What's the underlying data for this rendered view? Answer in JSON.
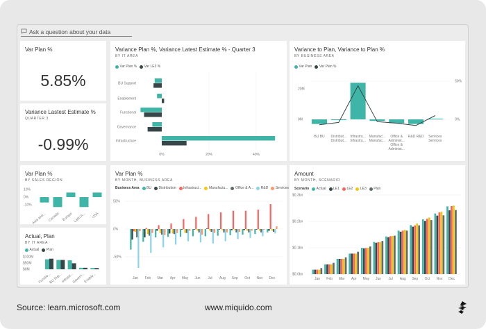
{
  "qa": {
    "placeholder": "Ask a question about your data",
    "icon": "chat-bubble-icon"
  },
  "tiles": {
    "kpi1": {
      "title": "Var Plan %",
      "value": "5.85%"
    },
    "kpi2": {
      "title": "Variance Lastest Estimate %",
      "subtitle": "QUARTER 3",
      "value": "-0.99%"
    }
  },
  "footer": {
    "source": "Source: learn.microsoft.com",
    "site": "www.miquido.com",
    "logo": "miquido-logo"
  },
  "colors": {
    "teal": "#3fb5a7",
    "dark": "#374649",
    "red": "#fd625e",
    "yellow": "#f2c80f",
    "gray": "#5f6b6d",
    "lightblue": "#8ad4eb",
    "orange": "#fe9666"
  },
  "chart_data": [
    {
      "id": "c1",
      "type": "bar",
      "orientation": "horizontal",
      "title": "Variance Plan %, Variance Latest Estimate % - Quarter 3",
      "subtitle": "BY IT AREA",
      "categories": [
        "BU Support",
        "Enablement",
        "Functional",
        "Governance",
        "Infrastructure"
      ],
      "series": [
        {
          "name": "Var Plan %",
          "color": "#3fb5a7",
          "values": [
            -3,
            -2,
            -9,
            -4,
            48
          ]
        },
        {
          "name": "Var LE3 %",
          "color": "#374649",
          "values": [
            -3.5,
            1,
            -7.5,
            -6,
            10.5
          ]
        }
      ],
      "xticks": [
        {
          "v": 0,
          "label": "0%"
        },
        {
          "v": 20,
          "label": "20%"
        },
        {
          "v": 40,
          "label": "40%"
        }
      ],
      "xlim": [
        -10,
        50
      ],
      "grid": true,
      "legend": "top-left"
    },
    {
      "id": "c2",
      "type": "bar+line",
      "title": "Variance to Plan, Variance to Plan %",
      "subtitle": "BY BUSINESS AREA",
      "categories": [
        [
          "BU BU"
        ],
        [
          "Distribut...",
          "Distribut..."
        ],
        [
          "Infrastru...",
          "Infrastru..."
        ],
        [
          "Manufac...",
          "Manufac..."
        ],
        [
          "Office &",
          "Administ...",
          "Office &",
          "Administ..."
        ],
        [
          "R&D R&D"
        ],
        [
          "Services",
          "Services"
        ]
      ],
      "series": [
        {
          "name": "Var Plan",
          "type": "bar",
          "color": "#3fb5a7",
          "values": [
            -3,
            -0.5,
            24,
            -1,
            -2.5,
            -3,
            0.5
          ]
        },
        {
          "name": "Var Plan %",
          "type": "line",
          "color": "#374649",
          "values": [
            -7,
            -4,
            44,
            -3,
            -5,
            -8,
            5
          ]
        }
      ],
      "yticks": [
        {
          "v": 0,
          "label": "0M"
        },
        {
          "v": 20,
          "label": "20M"
        }
      ],
      "y2ticks": [
        {
          "v": 0,
          "label": "0%"
        },
        {
          "v": 50,
          "label": "50%"
        }
      ],
      "legend": "top-left"
    },
    {
      "id": "c3",
      "type": "bar",
      "title": "Var Plan %",
      "subtitle": "BY SALES REGION",
      "categories": [
        "Asia and...",
        "Canada",
        "Europe",
        "Latin A...",
        "USA"
      ],
      "series": [
        {
          "color": "#3fb5a7",
          "values": [
            -7,
            -13,
            6,
            -13,
            6
          ]
        }
      ],
      "yticks": [
        {
          "v": 10,
          "label": "10%"
        },
        {
          "v": 0,
          "label": "0%"
        },
        {
          "v": -10,
          "label": "-10%"
        }
      ]
    },
    {
      "id": "c4",
      "type": "bar",
      "title": "Actual, Plan",
      "subtitle": "BY IT AREA",
      "categories": [
        "Functio...",
        "BU Sup...",
        "Infrastr...",
        "Govern...",
        "Enable..."
      ],
      "series": [
        {
          "name": "Actual",
          "color": "#3fb5a7",
          "values": [
            80,
            75,
            72,
            12,
            10
          ]
        },
        {
          "name": "Plan",
          "color": "#374649",
          "values": [
            85,
            75,
            48,
            12,
            10
          ]
        }
      ],
      "yticks": [
        {
          "v": 100,
          "label": "$100M"
        },
        {
          "v": 50,
          "label": "$50M"
        },
        {
          "v": 0,
          "label": "$0M"
        }
      ],
      "legend": "top-left"
    },
    {
      "id": "c5",
      "type": "bar",
      "title": "Var Plan %",
      "subtitle": "BY MONTH, BUSINESS AREA",
      "legend_title": "Business Area",
      "categories": [
        "Jan",
        "Feb",
        "Mar",
        "Apr",
        "May",
        "Jun",
        "Jul",
        "Aug",
        "Sep",
        "Oct",
        "Nov",
        "Dec"
      ],
      "series": [
        {
          "name": "BU",
          "color": "#3fb5a7",
          "values": [
            -37,
            -23,
            -15,
            -14,
            -14,
            -13,
            -13,
            -12,
            -11,
            -10,
            -9,
            -6
          ]
        },
        {
          "name": "Distribution",
          "color": "#374649",
          "values": [
            -19,
            -15,
            -3,
            -8,
            -1,
            -1,
            1,
            -1,
            -2,
            -2,
            -1,
            -3
          ]
        },
        {
          "name": "Infrastruct...",
          "color": "#fd625e",
          "values": [
            -4,
            2,
            7,
            10,
            18,
            22,
            27,
            30,
            33,
            33,
            35,
            45
          ]
        },
        {
          "name": "Manufactu...",
          "color": "#f2c80f",
          "values": [
            -5,
            -9,
            -7,
            -8,
            -7,
            -3,
            -3,
            -2,
            -2,
            -3,
            -3,
            -3
          ]
        },
        {
          "name": "Office & A...",
          "color": "#5f6b6d",
          "values": [
            -15,
            -12,
            -10,
            -9,
            -7,
            -6,
            -5,
            -6,
            -6,
            -6,
            -6,
            -5
          ]
        },
        {
          "name": "R&D",
          "color": "#8ad4eb",
          "values": [
            -70,
            -43,
            -33,
            -28,
            -22,
            -24,
            -26,
            -22,
            -18,
            -16,
            -13,
            -8
          ]
        },
        {
          "name": "Services",
          "color": "#fe9666",
          "values": [
            -4,
            -7,
            -11,
            -7,
            -3,
            -10,
            -7,
            -6,
            -5,
            -3,
            -1,
            5
          ]
        }
      ],
      "yticks": [
        {
          "v": 50,
          "label": "50%"
        },
        {
          "v": 0,
          "label": "0%"
        },
        {
          "v": -50,
          "label": "-50%"
        }
      ],
      "grid": true,
      "legend": "top-left"
    },
    {
      "id": "c6",
      "type": "bar",
      "title": "Amount",
      "subtitle": "BY MONTH, SCENARIO",
      "legend_title": "Scenario",
      "categories": [
        "Jan",
        "Feb",
        "Mar",
        "Apr",
        "May",
        "Jun",
        "Jul",
        "Aug",
        "Sep",
        "Oct",
        "Nov",
        "Dec"
      ],
      "series": [
        {
          "name": "Actual",
          "color": "#3fb5a7",
          "values": [
            0.017,
            0.037,
            0.058,
            0.078,
            0.1,
            0.122,
            0.143,
            0.165,
            0.186,
            0.208,
            0.23,
            0.257
          ]
        },
        {
          "name": "LE1",
          "color": "#374649",
          "values": [
            0.017,
            0.037,
            0.058,
            0.078,
            0.098,
            0.119,
            0.14,
            0.161,
            0.18,
            0.202,
            0.222,
            0.242
          ]
        },
        {
          "name": "LE2",
          "color": "#fd625e",
          "values": [
            0.017,
            0.037,
            0.058,
            0.078,
            0.099,
            0.121,
            0.144,
            0.165,
            0.185,
            0.21,
            0.234,
            0.258
          ]
        },
        {
          "name": "LE3",
          "color": "#f2c80f",
          "values": [
            0.017,
            0.037,
            0.058,
            0.078,
            0.1,
            0.122,
            0.145,
            0.168,
            0.192,
            0.215,
            0.237,
            0.26
          ]
        },
        {
          "name": "Plan",
          "color": "#5f6b6d",
          "values": [
            0.023,
            0.043,
            0.064,
            0.085,
            0.105,
            0.126,
            0.146,
            0.165,
            0.185,
            0.205,
            0.223,
            0.243
          ]
        }
      ],
      "yticks": [
        {
          "v": 0.3,
          "label": "$0.3bn"
        },
        {
          "v": 0.2,
          "label": "$0.2bn"
        },
        {
          "v": 0.1,
          "label": "$0.1bn"
        },
        {
          "v": 0,
          "label": "$0.0bn"
        }
      ],
      "grid": true,
      "legend": "top-left"
    }
  ]
}
